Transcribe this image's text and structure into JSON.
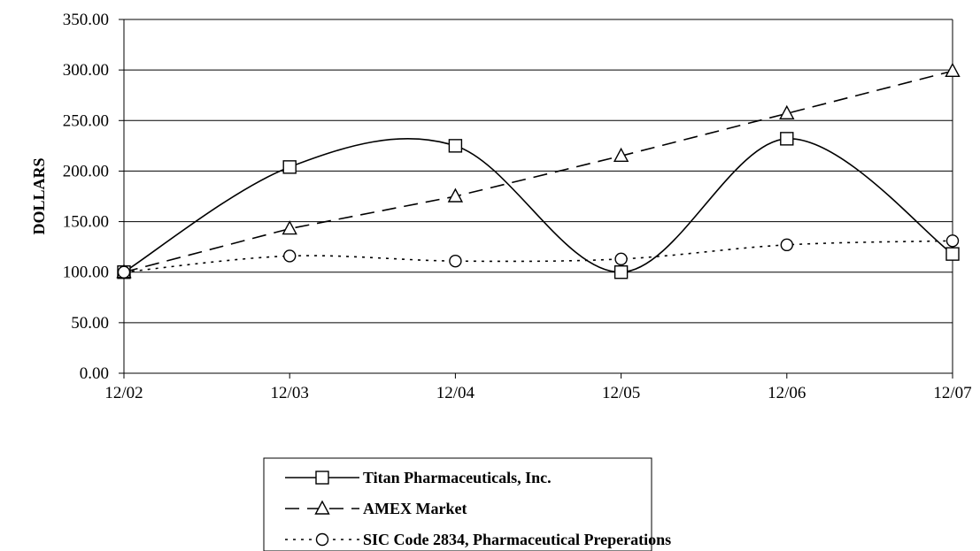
{
  "chart_data": {
    "type": "line",
    "title": "",
    "xlabel": "",
    "ylabel": "DOLLARS",
    "categories": [
      "12/02",
      "12/03",
      "12/04",
      "12/05",
      "12/06",
      "12/07"
    ],
    "ylim": [
      0,
      350
    ],
    "yticks": [
      "0.00",
      "50.00",
      "100.00",
      "150.00",
      "200.00",
      "250.00",
      "300.00",
      "350.00"
    ],
    "grid": true,
    "legend_position": "bottom",
    "series": [
      {
        "name": "Titan Pharmaceuticals, Inc.",
        "values": [
          100,
          204,
          225,
          100,
          232,
          118
        ],
        "line_style": "solid",
        "marker": "square",
        "smooth": true
      },
      {
        "name": "AMEX Market",
        "values": [
          100,
          143,
          175,
          215,
          257,
          299
        ],
        "line_style": "dashed",
        "marker": "triangle",
        "smooth": false
      },
      {
        "name": "SIC Code 2834, Pharmaceutical Preperations",
        "values": [
          100,
          116,
          111,
          113,
          127,
          131
        ],
        "line_style": "dotted",
        "marker": "circle",
        "smooth": true
      }
    ]
  }
}
